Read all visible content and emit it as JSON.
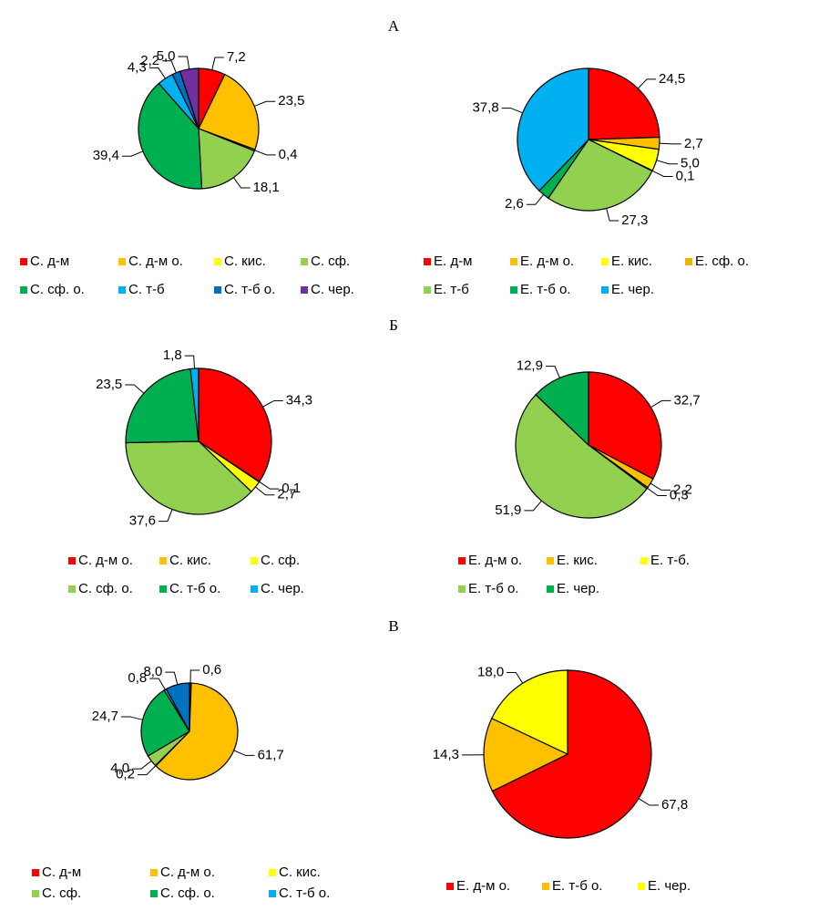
{
  "panel_labels": [
    "А",
    "Б",
    "В"
  ],
  "chart_data": [
    {
      "type": "pie",
      "categories": [
        "С. д-м",
        "С. д-м о.",
        "С. кис.",
        "С. сф.",
        "С. сф. о.",
        "С. т-б",
        "С. т-б о.",
        "С. чер."
      ],
      "values": [
        7.2,
        23.5,
        0.4,
        18.1,
        39.4,
        4.3,
        2.2,
        5.0
      ],
      "value_labels": [
        "7,2",
        "23,5",
        "0,4",
        "18,1",
        "39,4",
        "4,3",
        "2,2",
        "5,0"
      ],
      "colors": [
        "#ff0000",
        "#ffc000",
        "#ffff00",
        "#92d050",
        "#00b050",
        "#00b0f0",
        "#0070c0",
        "#7030a0"
      ]
    },
    {
      "type": "pie",
      "categories": [
        "Е. д-м",
        "Е. д-м о.",
        "Е. кис.",
        "Е. сф. о.",
        "Е. т-б",
        "Е. т-б о.",
        "Е. чер."
      ],
      "values": [
        24.5,
        2.7,
        5.0,
        0.1,
        27.3,
        2.6,
        37.8
      ],
      "value_labels": [
        "24,5",
        "2,7",
        "5,0",
        "0,1",
        "27,3",
        "2,6",
        "37,8"
      ],
      "colors": [
        "#ff0000",
        "#ffc000",
        "#ffff00",
        "#f4b000",
        "#92d050",
        "#00b050",
        "#00b0f0"
      ]
    },
    {
      "type": "pie",
      "categories": [
        "С. д-м о.",
        "С. кис.",
        "С. сф.",
        "С. сф. о.",
        "С. т-б о.",
        "С. чер."
      ],
      "values": [
        34.3,
        0.1,
        2.7,
        37.6,
        23.5,
        1.8
      ],
      "value_labels": [
        "34,3",
        "0,1",
        "2,7",
        "37,6",
        "23,5",
        "1,8"
      ],
      "colors": [
        "#ff0000",
        "#ffc000",
        "#ffff00",
        "#92d050",
        "#00b050",
        "#00b0f0"
      ]
    },
    {
      "type": "pie",
      "categories": [
        "Е. д-м о.",
        "Е. кис.",
        "Е. т-б.",
        "Е. т-б о.",
        "Е. чер."
      ],
      "values": [
        32.7,
        2.2,
        0.3,
        51.9,
        12.9
      ],
      "value_labels": [
        "32,7",
        "2,2",
        "0,3",
        "51,9",
        "12,9"
      ],
      "colors": [
        "#ff0000",
        "#ffc000",
        "#ffff00",
        "#92d050",
        "#00b050"
      ]
    },
    {
      "type": "pie",
      "categories": [
        "С. д-м",
        "С. д-м о.",
        "С. кис.",
        "С. сф.",
        "С. сф. о.",
        "С. т-б о.",
        null
      ],
      "values": [
        0.6,
        61.7,
        0.2,
        4.0,
        24.7,
        0.8,
        8.0
      ],
      "value_labels": [
        "0,6",
        "61,7",
        "0,2",
        "4,0",
        "24,7",
        "0,8",
        "8,0"
      ],
      "colors": [
        "#ff0000",
        "#ffc000",
        "#ffff00",
        "#92d050",
        "#00b050",
        "#00b0f0",
        "#0070c0"
      ]
    },
    {
      "type": "pie",
      "categories": [
        "Е. д-м о.",
        "Е. т-б о.",
        "Е. чер."
      ],
      "values": [
        67.8,
        14.3,
        18.0
      ],
      "value_labels": [
        "67,8",
        "14,3",
        "18,0"
      ],
      "colors": [
        "#ff0000",
        "#ffc000",
        "#ffff00"
      ]
    }
  ]
}
